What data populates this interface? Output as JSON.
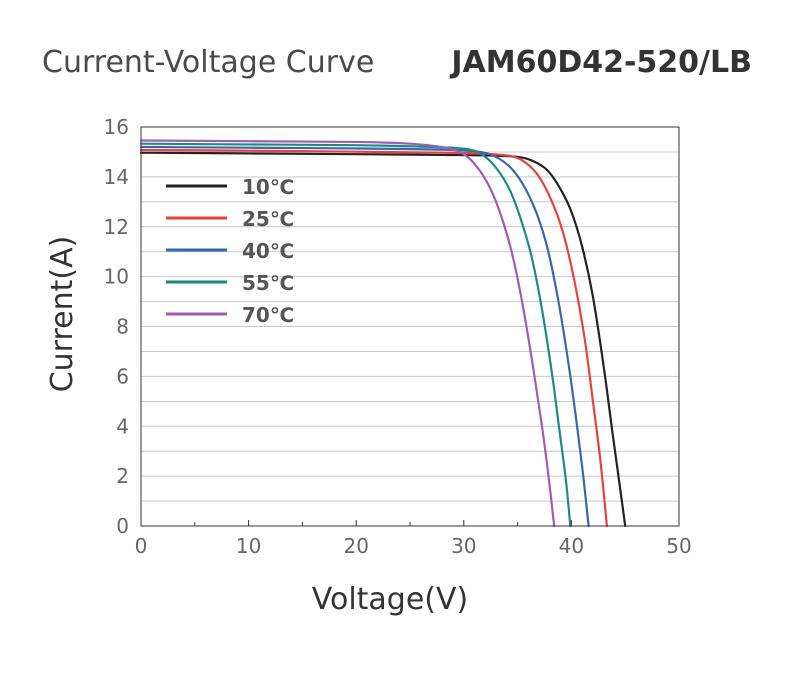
{
  "chart_data": {
    "type": "line",
    "title": "Current-Voltage Curve",
    "model": "JAM60D42-520/LB",
    "xlabel": "Voltage(V)",
    "ylabel": "Current(A)",
    "xlim": [
      0,
      50
    ],
    "ylim": [
      0,
      16
    ],
    "xticks": [
      "0",
      "10",
      "20",
      "30",
      "40",
      "50"
    ],
    "yticks": [
      "0",
      "2",
      "4",
      "6",
      "8",
      "10",
      "12",
      "14",
      "16"
    ],
    "grid": "horizontal",
    "legend_position": "top-left",
    "series": [
      {
        "name": "10℃",
        "color": "#222222",
        "x": [
          0,
          10,
          20,
          28,
          32,
          35,
          36.5,
          37.8,
          39,
          40,
          41,
          42,
          43,
          43.8,
          44.5,
          45
        ],
        "y": [
          14.97,
          14.94,
          14.91,
          14.88,
          14.86,
          14.8,
          14.62,
          14.25,
          13.5,
          12.6,
          11.2,
          9.2,
          6.4,
          3.8,
          1.6,
          0
        ]
      },
      {
        "name": "25℃",
        "color": "#e8423c",
        "x": [
          0,
          10,
          20,
          28,
          32,
          34.5,
          35.8,
          37,
          38.2,
          39.2,
          40.2,
          41.2,
          42,
          42.7,
          43.3
        ],
        "y": [
          15.08,
          15.05,
          15.01,
          14.97,
          14.93,
          14.82,
          14.55,
          14.0,
          13.0,
          11.8,
          10.0,
          7.6,
          5.0,
          2.6,
          0
        ]
      },
      {
        "name": "40℃",
        "color": "#3a66ad",
        "x": [
          0,
          10,
          20,
          28,
          31.5,
          33.2,
          34.5,
          35.7,
          36.8,
          37.8,
          38.8,
          39.7,
          40.5,
          41.1,
          41.6
        ],
        "y": [
          15.2,
          15.17,
          15.14,
          15.09,
          15.0,
          14.75,
          14.3,
          13.55,
          12.5,
          11.1,
          9.0,
          6.6,
          4.1,
          2.0,
          0
        ]
      },
      {
        "name": "55℃",
        "color": "#1f8a80",
        "x": [
          0,
          10,
          20,
          27,
          30.5,
          32,
          33.2,
          34.3,
          35.3,
          36.3,
          37.3,
          38.2,
          38.9,
          39.5,
          39.9
        ],
        "y": [
          15.33,
          15.3,
          15.27,
          15.2,
          15.1,
          14.8,
          14.25,
          13.45,
          12.3,
          10.8,
          8.6,
          6.1,
          3.8,
          1.8,
          0
        ]
      },
      {
        "name": "70℃",
        "color": "#a05cb5",
        "x": [
          0,
          10,
          20,
          25,
          28.5,
          30.2,
          31.4,
          32.5,
          33.5,
          34.5,
          35.5,
          36.5,
          37.3,
          37.9,
          38.4
        ],
        "y": [
          15.46,
          15.43,
          15.4,
          15.33,
          15.15,
          14.85,
          14.3,
          13.5,
          12.4,
          10.9,
          8.8,
          6.2,
          3.9,
          1.9,
          0
        ]
      }
    ]
  }
}
